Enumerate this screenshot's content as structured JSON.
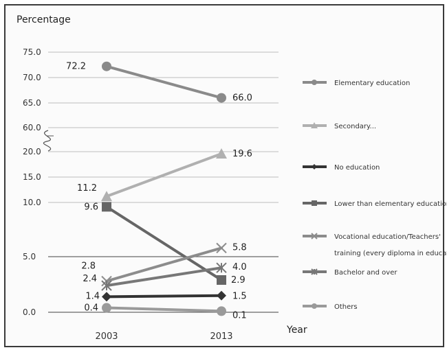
{
  "chart_data": {
    "type": "line",
    "title": "Percentage",
    "xlabel": "Year",
    "ylabel": "",
    "categories": [
      "2003",
      "2013"
    ],
    "y_tick_labels": [
      "0.0",
      "5.0",
      "10.0",
      "15.0",
      "20.0",
      "60.0",
      "65.0",
      "70.0",
      "75.0"
    ],
    "axis_note": "broken y-axis between 20.0 and 60.0; non-linear spacing",
    "grid": true,
    "legend_position": "right",
    "series": [
      {
        "name": "Elementary education",
        "values": [
          72.2,
          66.0
        ],
        "labels": [
          "72.2",
          "66.0"
        ],
        "marker": "circle",
        "color": "#8a8a8a"
      },
      {
        "name": "Secondary...",
        "values": [
          11.2,
          19.6
        ],
        "labels": [
          "11.2",
          "19.6"
        ],
        "marker": "triangle",
        "color": "#b0b0b0"
      },
      {
        "name": "No education",
        "values": [
          1.4,
          1.5
        ],
        "labels": [
          "1.4",
          "1.5"
        ],
        "marker": "diamond",
        "color": "#333333"
      },
      {
        "name": "Lower than elementary education",
        "values": [
          9.6,
          2.9
        ],
        "labels": [
          "9.6",
          "2.9"
        ],
        "marker": "square",
        "color": "#666666"
      },
      {
        "name": "Vocational education/Teachers' training (every diploma in education)",
        "legend_lines": [
          "Vocational education/Teachers'",
          "training (every diploma in education)"
        ],
        "values": [
          2.8,
          5.8
        ],
        "labels": [
          "2.8",
          "5.8"
        ],
        "marker": "x",
        "color": "#8c8c8c"
      },
      {
        "name": "Bachelor and over",
        "values": [
          2.4,
          4.0
        ],
        "labels": [
          "2.4",
          "4.0"
        ],
        "marker": "star",
        "color": "#777777"
      },
      {
        "name": "Others",
        "values": [
          0.4,
          0.1
        ],
        "labels": [
          "0.4",
          "0.1"
        ],
        "marker": "circle",
        "color": "#9a9a9a"
      }
    ]
  }
}
